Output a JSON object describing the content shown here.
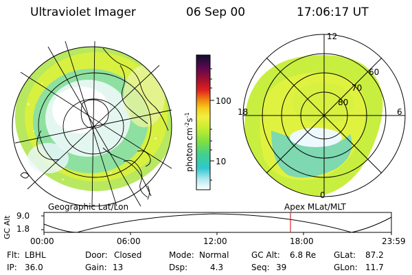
{
  "header": {
    "title": "Ultraviolet Imager",
    "date": "06 Sep 00",
    "time": "17:06:17 UT"
  },
  "colorbar": {
    "label_units": "photon cm",
    "label_exp1": "-2",
    "label_s": "s",
    "label_exp2": "-1",
    "tick_high": "100",
    "tick_low": "10"
  },
  "left_panel": {
    "label": "Geographic Lat/Lon"
  },
  "right_panel": {
    "label": "Apex  MLat/MLT",
    "mlt_top": "12",
    "mlt_left": "18",
    "mlt_right": "6",
    "mlt_bottom": "0",
    "lat_60": "60",
    "lat_70": "70",
    "lat_80": "80"
  },
  "altitude_plot": {
    "ylabel": "GC Alt",
    "y_high": "9.0",
    "y_low": "1.8",
    "x_ticks": [
      "00:00",
      "06:00",
      "12:00",
      "18:00",
      "23:59"
    ],
    "marker_color": "#cc0000"
  },
  "status": {
    "flt_label": "Flt:",
    "flt_value": "LBHL",
    "ip_label": "IP:",
    "ip_value": "36.0",
    "door_label": "Door:",
    "door_value": "Closed",
    "gain_label": "Gain:",
    "gain_value": "13",
    "mode_label": "Mode:",
    "mode_value": "Normal",
    "dsp_label": "Dsp:",
    "dsp_value": "4.3",
    "gcalt_label": "GC Alt:",
    "gcalt_value": "6.8 Re",
    "seq_label": "Seq:",
    "seq_value": "39",
    "glat_label": "GLat:",
    "glat_value": "87.2",
    "glon_label": "GLon:",
    "glon_value": "11.7"
  }
}
